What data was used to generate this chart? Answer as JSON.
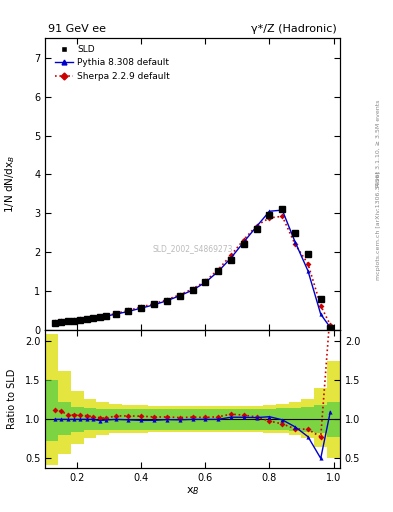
{
  "title_left": "91 GeV ee",
  "title_right": "γ*/Z (Hadronic)",
  "ylabel_main": "1/N dN/dx$_B$",
  "ylabel_ratio": "Ratio to SLD",
  "xlabel": "x$_B$",
  "right_label_top": "Rivet 3.1.10, ≥ 3.5M events",
  "right_label_bottom": "mcplots.cern.ch [arXiv:1306.3436]",
  "watermark": "SLD_2002_S4869273",
  "ylim_main": [
    0,
    7.5
  ],
  "ylim_ratio": [
    0.37,
    2.15
  ],
  "xlim": [
    0.1,
    1.02
  ],
  "sld_x": [
    0.13,
    0.15,
    0.17,
    0.19,
    0.21,
    0.23,
    0.25,
    0.27,
    0.29,
    0.32,
    0.36,
    0.4,
    0.44,
    0.48,
    0.52,
    0.56,
    0.6,
    0.64,
    0.68,
    0.72,
    0.76,
    0.8,
    0.84,
    0.88,
    0.92,
    0.96,
    0.99
  ],
  "sld_y": [
    0.175,
    0.195,
    0.215,
    0.235,
    0.255,
    0.275,
    0.3,
    0.325,
    0.355,
    0.4,
    0.475,
    0.565,
    0.65,
    0.75,
    0.88,
    1.02,
    1.22,
    1.5,
    1.8,
    2.2,
    2.6,
    2.95,
    3.1,
    2.5,
    1.95,
    0.8,
    0.05
  ],
  "pythia_x": [
    0.13,
    0.15,
    0.17,
    0.19,
    0.21,
    0.23,
    0.25,
    0.27,
    0.29,
    0.32,
    0.36,
    0.4,
    0.44,
    0.48,
    0.52,
    0.56,
    0.6,
    0.64,
    0.68,
    0.72,
    0.76,
    0.8,
    0.84,
    0.88,
    0.92,
    0.96,
    0.99
  ],
  "pythia_y": [
    0.175,
    0.195,
    0.215,
    0.235,
    0.255,
    0.275,
    0.3,
    0.32,
    0.352,
    0.4,
    0.472,
    0.558,
    0.642,
    0.748,
    0.875,
    1.02,
    1.22,
    1.5,
    1.85,
    2.26,
    2.66,
    3.05,
    3.08,
    2.26,
    1.52,
    0.4,
    0.055
  ],
  "sherpa_x": [
    0.13,
    0.15,
    0.17,
    0.19,
    0.21,
    0.23,
    0.25,
    0.27,
    0.29,
    0.32,
    0.36,
    0.4,
    0.44,
    0.48,
    0.52,
    0.56,
    0.6,
    0.64,
    0.68,
    0.72,
    0.76,
    0.8,
    0.84,
    0.88,
    0.92,
    0.96,
    0.99
  ],
  "sherpa_y": [
    0.195,
    0.215,
    0.228,
    0.248,
    0.268,
    0.288,
    0.31,
    0.332,
    0.36,
    0.418,
    0.496,
    0.588,
    0.67,
    0.773,
    0.9,
    1.05,
    1.25,
    1.55,
    1.92,
    2.32,
    2.68,
    2.88,
    2.92,
    2.2,
    1.7,
    0.62,
    0.12
  ],
  "pythia_ratio": [
    1.0,
    1.0,
    1.0,
    1.0,
    1.0,
    1.0,
    1.0,
    0.985,
    0.992,
    1.0,
    0.994,
    0.987,
    0.988,
    0.997,
    0.994,
    1.0,
    1.0,
    1.0,
    1.028,
    1.027,
    1.023,
    1.034,
    0.994,
    0.904,
    0.779,
    0.5,
    1.1
  ],
  "sherpa_ratio": [
    1.114,
    1.103,
    1.06,
    1.055,
    1.051,
    1.047,
    1.033,
    1.022,
    1.014,
    1.045,
    1.044,
    1.041,
    1.031,
    1.031,
    1.023,
    1.029,
    1.025,
    1.033,
    1.067,
    1.055,
    1.031,
    0.978,
    0.942,
    0.88,
    0.872,
    0.775,
    2.4
  ],
  "band_x_edges": [
    0.1,
    0.14,
    0.18,
    0.22,
    0.26,
    0.3,
    0.34,
    0.38,
    0.42,
    0.46,
    0.5,
    0.54,
    0.58,
    0.62,
    0.66,
    0.7,
    0.74,
    0.78,
    0.82,
    0.86,
    0.9,
    0.94,
    0.98,
    1.02
  ],
  "green_low": [
    0.72,
    0.8,
    0.84,
    0.86,
    0.87,
    0.87,
    0.87,
    0.87,
    0.87,
    0.87,
    0.87,
    0.87,
    0.87,
    0.87,
    0.87,
    0.87,
    0.87,
    0.87,
    0.86,
    0.85,
    0.84,
    0.82,
    0.78,
    0.78
  ],
  "green_high": [
    1.5,
    1.22,
    1.16,
    1.14,
    1.13,
    1.13,
    1.13,
    1.13,
    1.13,
    1.13,
    1.13,
    1.13,
    1.13,
    1.13,
    1.13,
    1.13,
    1.13,
    1.13,
    1.14,
    1.15,
    1.16,
    1.18,
    1.22,
    1.22
  ],
  "yellow_low": [
    0.42,
    0.55,
    0.68,
    0.76,
    0.8,
    0.82,
    0.83,
    0.83,
    0.84,
    0.84,
    0.84,
    0.84,
    0.84,
    0.84,
    0.84,
    0.84,
    0.84,
    0.83,
    0.82,
    0.8,
    0.76,
    0.65,
    0.5,
    0.5
  ],
  "yellow_high": [
    2.1,
    1.62,
    1.36,
    1.26,
    1.22,
    1.2,
    1.18,
    1.18,
    1.17,
    1.17,
    1.17,
    1.17,
    1.17,
    1.17,
    1.17,
    1.17,
    1.17,
    1.18,
    1.2,
    1.22,
    1.26,
    1.4,
    1.75,
    1.75
  ],
  "sld_color": "#000000",
  "pythia_color": "#0000cc",
  "sherpa_color": "#cc0000",
  "green_color": "#00cc00",
  "yellow_color": "#cccc00"
}
